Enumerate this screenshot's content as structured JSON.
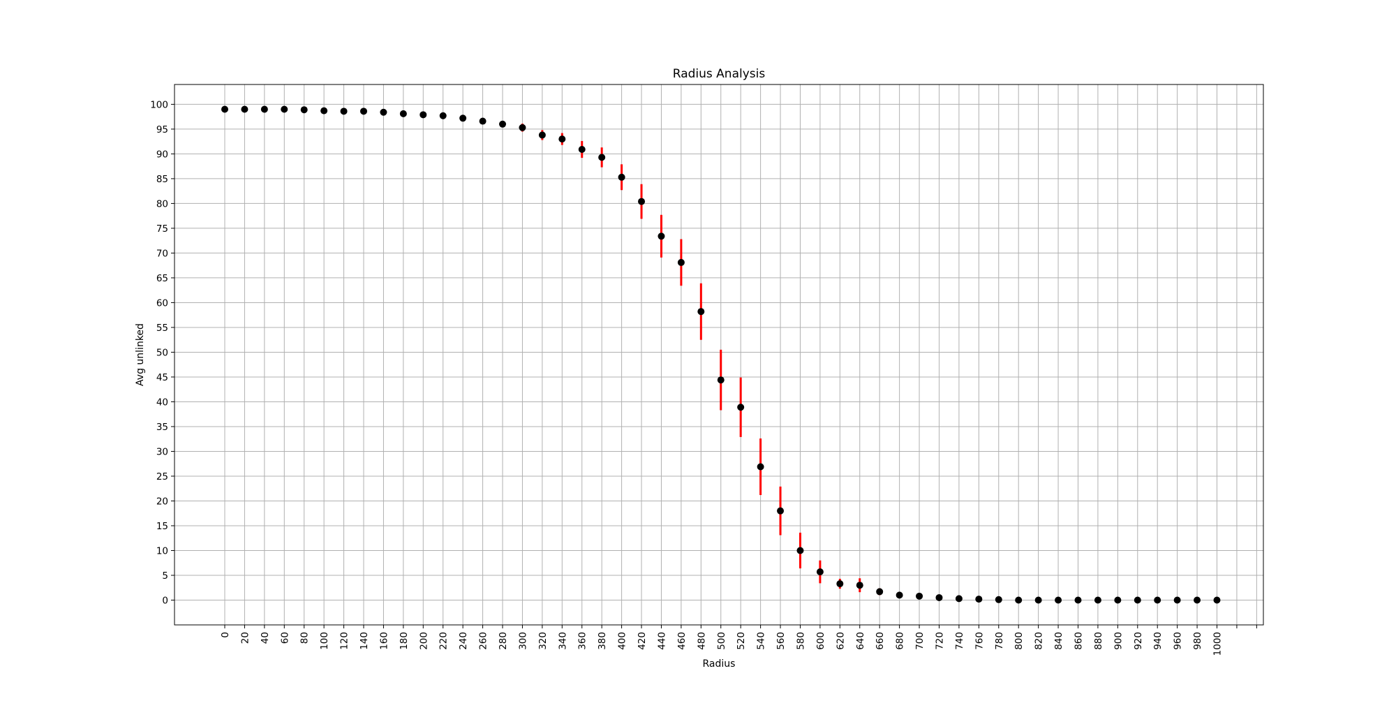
{
  "chart_data": {
    "type": "scatter",
    "title": "Radius Analysis",
    "xlabel": "Radius",
    "ylabel": "Avg unlinked",
    "x_tick_labels": [
      "0",
      "20",
      "40",
      "60",
      "80",
      "100",
      "120",
      "140",
      "160",
      "180",
      "200",
      "220",
      "240",
      "260",
      "280",
      "300",
      "320",
      "340",
      "360",
      "380",
      "400",
      "420",
      "440",
      "460",
      "480",
      "500",
      "520",
      "540",
      "560",
      "580",
      "600",
      "620",
      "640",
      "660",
      "680",
      "700",
      "720",
      "740",
      "760",
      "780",
      "800",
      "820",
      "840",
      "860",
      "880",
      "900",
      "920",
      "940",
      "960",
      "980",
      "1000"
    ],
    "y_ticks": [
      0,
      5,
      10,
      15,
      20,
      25,
      30,
      35,
      40,
      45,
      50,
      55,
      60,
      65,
      70,
      75,
      80,
      85,
      90,
      95,
      100
    ],
    "ylim": [
      -5,
      104
    ],
    "grid": true,
    "marker_color": "#000000",
    "errorbar_color": "#ff0000",
    "series": [
      {
        "x": [
          0,
          20,
          40,
          60,
          80,
          100,
          120,
          140,
          160,
          180,
          200,
          220,
          240,
          260,
          280,
          300,
          320,
          340,
          360,
          380,
          400,
          420,
          440,
          460,
          480,
          500,
          520,
          540,
          560,
          580,
          600,
          620,
          640,
          660,
          680,
          700,
          720,
          740,
          760,
          780,
          800,
          820,
          840,
          860,
          880,
          900,
          920,
          940,
          960,
          980,
          1000
        ],
        "y": [
          99.0,
          99.0,
          99.0,
          99.0,
          98.9,
          98.7,
          98.6,
          98.6,
          98.4,
          98.1,
          97.9,
          97.7,
          97.2,
          96.6,
          96.0,
          95.3,
          93.8,
          93.0,
          90.9,
          89.3,
          85.3,
          80.4,
          73.4,
          68.1,
          58.2,
          44.4,
          38.9,
          26.9,
          18.0,
          10.0,
          5.7,
          3.3,
          3.0,
          1.7,
          1.0,
          0.8,
          0.5,
          0.3,
          0.2,
          0.1,
          0.0,
          0.0,
          0.0,
          0.0,
          0.0,
          0.0,
          0.0,
          0.0,
          0.0,
          0.0,
          0.0
        ],
        "yerr": [
          0,
          0,
          0,
          0,
          0,
          0,
          0,
          0,
          0,
          0,
          0,
          0,
          0,
          0,
          0,
          0.8,
          1.0,
          1.2,
          1.7,
          2.0,
          2.6,
          3.5,
          4.3,
          4.7,
          5.7,
          6.1,
          6.0,
          5.7,
          4.9,
          3.6,
          2.3,
          1.0,
          1.4,
          0.7,
          0,
          0,
          0,
          0,
          0,
          0,
          0,
          0,
          0,
          0,
          0,
          0,
          0,
          0,
          0,
          0,
          0
        ]
      }
    ]
  }
}
